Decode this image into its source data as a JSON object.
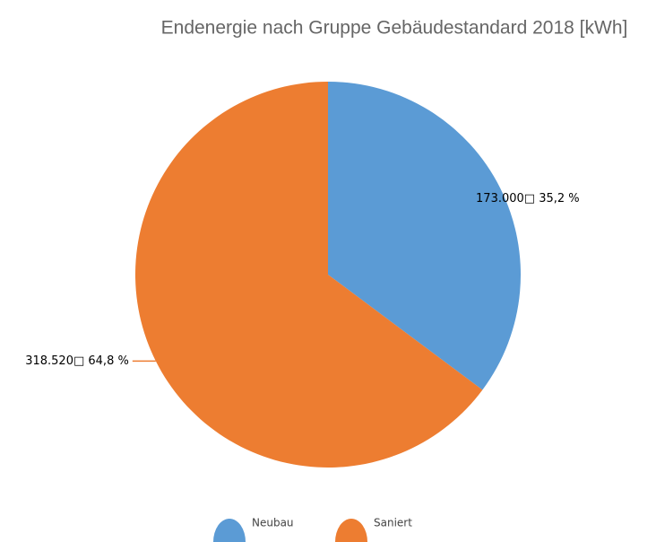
{
  "chart_data": {
    "type": "pie",
    "title": "Endenergie nach Gruppe Gebäudestandard 2018 [kWh]",
    "categories": [
      "Neubau",
      "Saniert"
    ],
    "values": [
      173000,
      318520
    ],
    "value_labels": [
      "173.000□ 35,2 %",
      "318.520□ 64,8 %"
    ],
    "colors": [
      "#5b9bd5",
      "#ed7d31"
    ],
    "legend": "bottom"
  }
}
